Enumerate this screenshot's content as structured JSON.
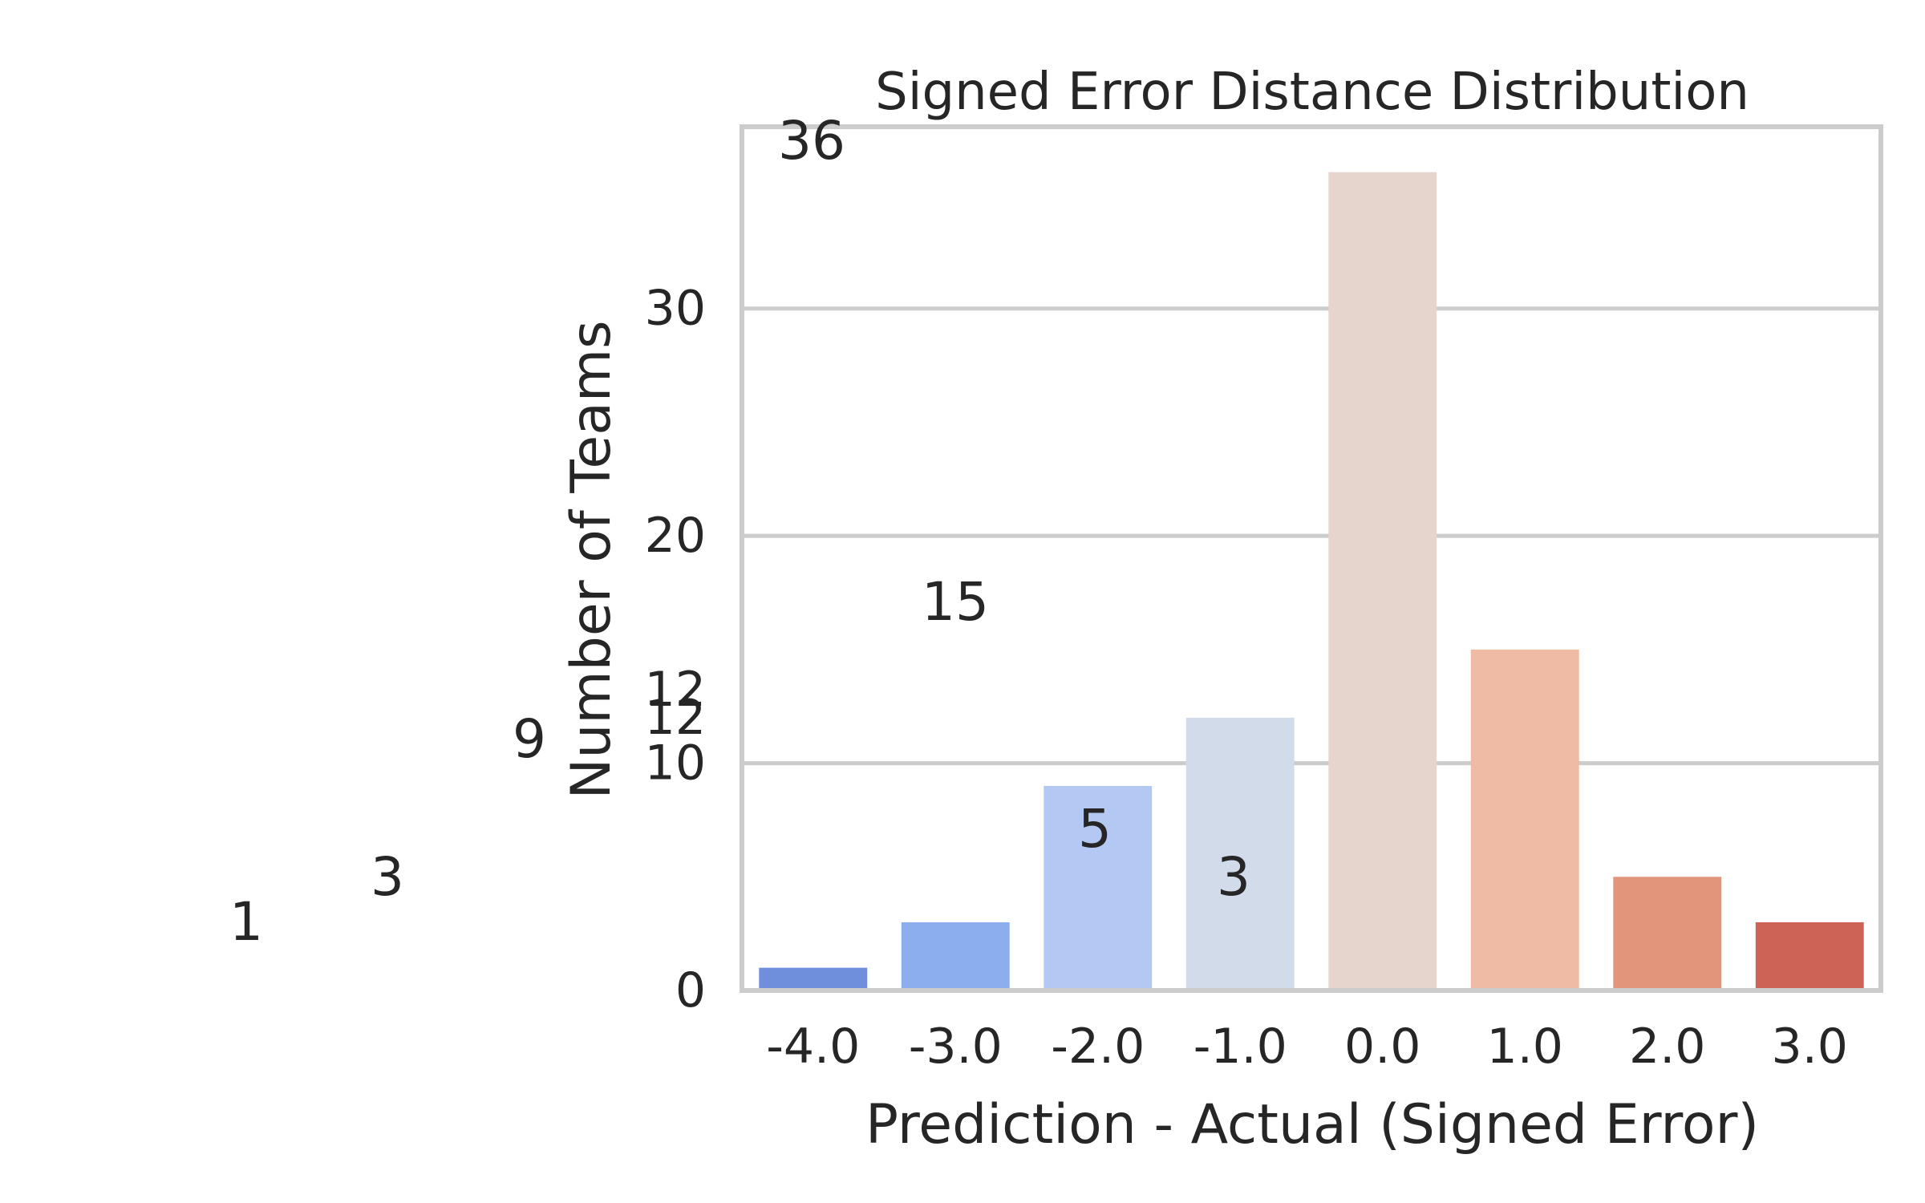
{
  "chart_data": {
    "type": "bar",
    "title": "Signed Error Distance Distribution",
    "xlabel": "Prediction - Actual (Signed Error)",
    "ylabel": "Number of Teams",
    "categories": [
      "-4.0",
      "-3.0",
      "-2.0",
      "-1.0",
      "0.0",
      "1.0",
      "2.0",
      "3.0"
    ],
    "values": [
      1,
      3,
      9,
      12,
      36,
      15,
      5,
      3
    ],
    "colors": [
      "#6f8fdc",
      "#8daeee",
      "#b3c9f4",
      "#d1dbea",
      "#e6d5cd",
      "#efbba5",
      "#e3957b",
      "#cd6357"
    ],
    "ylim": [
      0,
      38
    ],
    "yticks": [
      0,
      10,
      12,
      20,
      30
    ],
    "grid": true,
    "data_labels": [
      "1",
      "3",
      "9",
      "12",
      "36",
      "15",
      "5",
      "3"
    ]
  }
}
